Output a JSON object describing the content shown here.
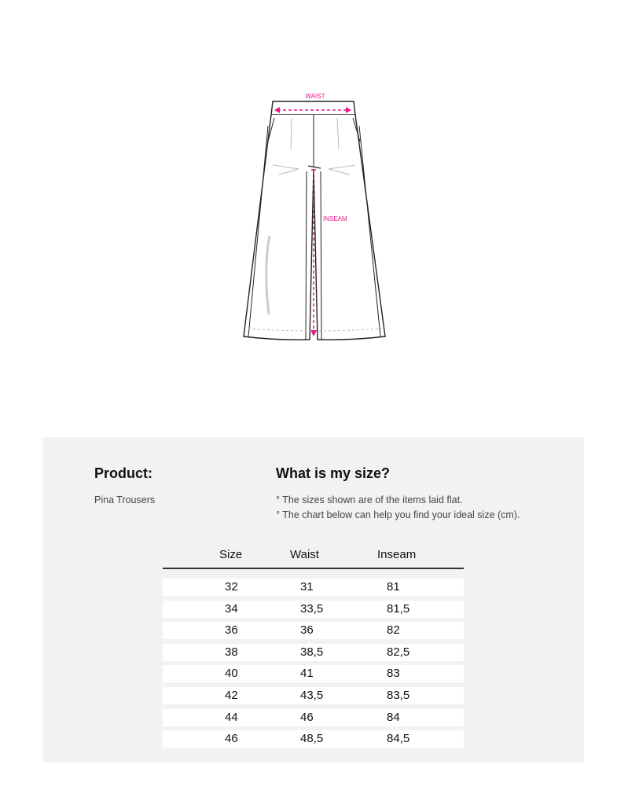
{
  "diagram": {
    "waist_label": "WAIST",
    "inseam_label": "INSEAM",
    "accent_color": "#e6198a"
  },
  "product": {
    "heading": "Product:",
    "name": "Pina Trousers"
  },
  "sizing": {
    "heading": "What is my size?",
    "notes": [
      "° The sizes shown are of the items laid flat.",
      "° The chart below can help you find your ideal size (cm)."
    ]
  },
  "table": {
    "headers": [
      "Size",
      "Waist",
      "Inseam"
    ],
    "rows": [
      [
        "32",
        "31",
        "81"
      ],
      [
        "34",
        "33,5",
        "81,5"
      ],
      [
        "36",
        "36",
        "82"
      ],
      [
        "38",
        "38,5",
        "82,5"
      ],
      [
        "40",
        "41",
        "83"
      ],
      [
        "42",
        "43,5",
        "83,5"
      ],
      [
        "44",
        "46",
        "84"
      ],
      [
        "46",
        "48,5",
        "84,5"
      ]
    ]
  }
}
